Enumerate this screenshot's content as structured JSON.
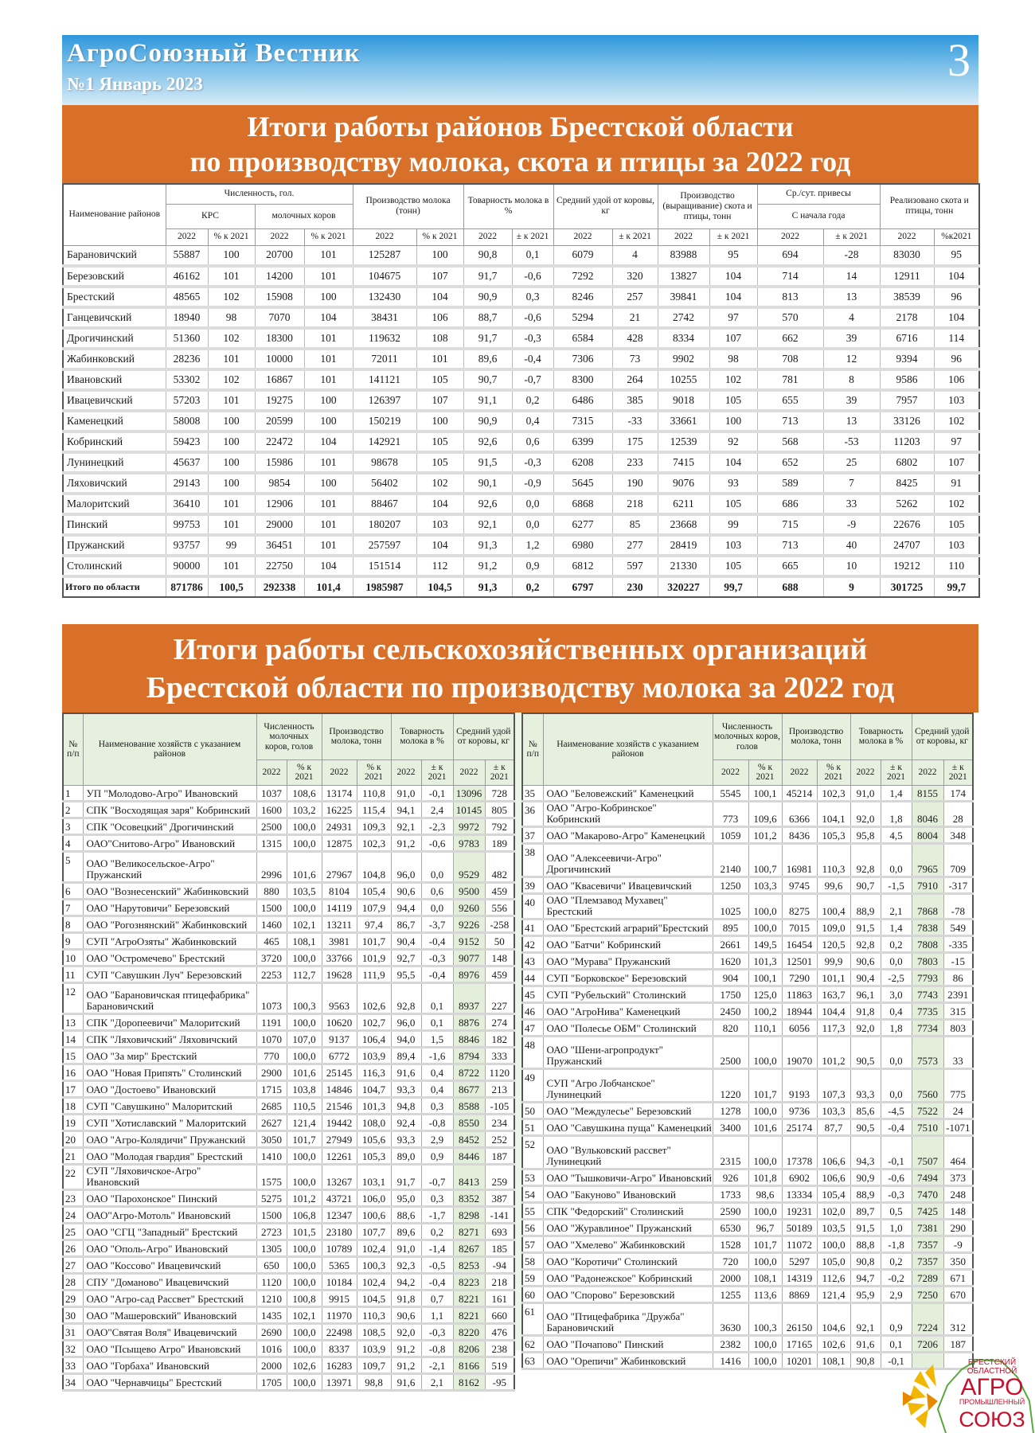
{
  "masthead": {
    "title": "АгроСоюзный  Вестник",
    "issue": "№1 Январь 2023",
    "page": "3"
  },
  "colors": {
    "masthead_blue": "#2e97dc",
    "title_band_orange": "#d8702a",
    "highlight_green": "#e3efdb"
  },
  "section1": {
    "title_lines": [
      "Итоги работы районов Брестской области",
      "по производству молока, скота и птицы за 2022 год"
    ],
    "headers": {
      "name": "Наименование районов",
      "headcount": "Численность, гол.",
      "krs": "КРС",
      "cows": "молочных коров",
      "milk": "Производство молока (тонн)",
      "marketability": "Товарность молока в %",
      "yield": "Средний удой от коровы, кг",
      "livestock": "Производство (выращивание) скота и птицы, тонн",
      "gain": "Ср./сут. привесы",
      "gain_sub": "С начала года",
      "sold": "Реализовано скота и птицы, тонн",
      "sub": [
        "2022",
        "% к 2021",
        "2022",
        "% к 2021",
        "2022",
        "% к 2021",
        "2022",
        "± к 2021",
        "2022",
        "± к 2021",
        "2022",
        "± к 2021",
        "2022",
        "± к 2021",
        "2022",
        "%к2021"
      ]
    },
    "rows": [
      [
        "Барановичский",
        "55887",
        "100",
        "20700",
        "101",
        "125287",
        "100",
        "90,8",
        "0,1",
        "6079",
        "4",
        "83988",
        "95",
        "694",
        "-28",
        "83030",
        "95"
      ],
      [
        "Березовский",
        "46162",
        "101",
        "14200",
        "101",
        "104675",
        "107",
        "91,7",
        "-0,6",
        "7292",
        "320",
        "13827",
        "104",
        "714",
        "14",
        "12911",
        "104"
      ],
      [
        "Брестский",
        "48565",
        "102",
        "15908",
        "100",
        "132430",
        "104",
        "90,9",
        "0,3",
        "8246",
        "257",
        "39841",
        "104",
        "813",
        "13",
        "38539",
        "96"
      ],
      [
        "Ганцевичский",
        "18940",
        "98",
        "7070",
        "104",
        "38431",
        "106",
        "88,7",
        "-0,6",
        "5294",
        "21",
        "2742",
        "97",
        "570",
        "4",
        "2178",
        "104"
      ],
      [
        "Дрогичинский",
        "51360",
        "102",
        "18300",
        "101",
        "119632",
        "108",
        "91,7",
        "-0,3",
        "6584",
        "428",
        "8334",
        "107",
        "662",
        "39",
        "6716",
        "114"
      ],
      [
        "Жабинковский",
        "28236",
        "101",
        "10000",
        "101",
        "72011",
        "101",
        "89,6",
        "-0,4",
        "7306",
        "73",
        "9902",
        "98",
        "708",
        "12",
        "9394",
        "96"
      ],
      [
        "Ивановский",
        "53302",
        "102",
        "16867",
        "101",
        "141121",
        "105",
        "90,7",
        "-0,7",
        "8300",
        "264",
        "10255",
        "102",
        "781",
        "8",
        "9586",
        "106"
      ],
      [
        "Ивацевичский",
        "57203",
        "101",
        "19275",
        "100",
        "126397",
        "107",
        "91,1",
        "0,2",
        "6486",
        "385",
        "9018",
        "105",
        "655",
        "39",
        "7957",
        "103"
      ],
      [
        "Каменецкий",
        "58008",
        "100",
        "20599",
        "100",
        "150219",
        "100",
        "90,9",
        "0,4",
        "7315",
        "-33",
        "33661",
        "100",
        "713",
        "13",
        "33126",
        "102"
      ],
      [
        "Кобринский",
        "59423",
        "100",
        "22472",
        "104",
        "142921",
        "105",
        "92,6",
        "0,6",
        "6399",
        "175",
        "12539",
        "92",
        "568",
        "-53",
        "11203",
        "97"
      ],
      [
        "Лунинецкий",
        "45637",
        "100",
        "15986",
        "101",
        "98678",
        "105",
        "91,5",
        "-0,3",
        "6208",
        "233",
        "7415",
        "104",
        "652",
        "25",
        "6802",
        "107"
      ],
      [
        "Ляховичский",
        "29143",
        "100",
        "9854",
        "100",
        "56402",
        "102",
        "90,1",
        "-0,9",
        "5645",
        "190",
        "9076",
        "93",
        "589",
        "7",
        "8425",
        "91"
      ],
      [
        "Малоритский",
        "36410",
        "101",
        "12906",
        "101",
        "88467",
        "104",
        "92,6",
        "0,0",
        "6868",
        "218",
        "6211",
        "105",
        "686",
        "33",
        "5262",
        "102"
      ],
      [
        "Пинский",
        "99753",
        "101",
        "29000",
        "101",
        "180207",
        "103",
        "92,1",
        "0,0",
        "6277",
        "85",
        "23668",
        "99",
        "715",
        "-9",
        "22676",
        "105"
      ],
      [
        "Пружанский",
        "93757",
        "99",
        "36451",
        "101",
        "257597",
        "104",
        "91,3",
        "1,2",
        "6980",
        "277",
        "28419",
        "103",
        "713",
        "40",
        "24707",
        "103"
      ],
      [
        "Столинский",
        "90000",
        "101",
        "22750",
        "104",
        "151514",
        "112",
        "91,2",
        "0,9",
        "6812",
        "597",
        "21330",
        "105",
        "665",
        "10",
        "19212",
        "110"
      ]
    ],
    "total": [
      "Итого по области",
      "871786",
      "100,5",
      "292338",
      "101,4",
      "1985987",
      "104,5",
      "91,3",
      "0,2",
      "6797",
      "230",
      "320227",
      "99,7",
      "688",
      "9",
      "301725",
      "99,7"
    ]
  },
  "section2": {
    "title_lines": [
      "Итоги работы сельскохозяйственных организаций",
      "Брестской области  по производству молока за 2022 год"
    ],
    "headers": {
      "num": "№ п/п",
      "name": "Наименование хозяйств с указанием районов",
      "cows": "Численность молочных коров, голов",
      "milk": "Производство молока, тонн",
      "marketability": "Товарность молока в %",
      "yield": "Средний удой от коровы, кг",
      "sub": [
        "2022",
        "% к 2021",
        "2022",
        "% к 2021",
        "2022",
        "± к 2021",
        "2022",
        "± к 2021"
      ]
    },
    "left_rows": [
      [
        "1",
        "УП \"Молодово-Агро\" Ивановский",
        "1037",
        "108,6",
        "13174",
        "110,8",
        "91,0",
        "-0,1",
        "13096",
        "728"
      ],
      [
        "2",
        "СПК \"Восходящая заря\" Кобринский",
        "1600",
        "103,2",
        "16225",
        "115,4",
        "94,1",
        "2,4",
        "10145",
        "805"
      ],
      [
        "3",
        "СПК \"Осовецкий\" Дрогичинский",
        "2500",
        "100,0",
        "24931",
        "109,3",
        "92,1",
        "-2,3",
        "9972",
        "792"
      ],
      [
        "4",
        "ОАО\"Снитово-Агро\" Ивановский",
        "1315",
        "100,0",
        "12875",
        "102,3",
        "91,2",
        "-0,6",
        "9783",
        "189"
      ],
      [
        "5",
        "ОАО \"Великосельское-Агро\"\n Пружанский",
        "2996",
        "101,6",
        "27967",
        "104,8",
        "96,0",
        "0,0",
        "9529",
        "482"
      ],
      [
        "6",
        "ОАО \"Вознесенский\"  Жабинковский",
        "880",
        "103,5",
        "8104",
        "105,4",
        "90,6",
        "0,6",
        "9500",
        "459"
      ],
      [
        "7",
        "ОАО \"Нарутовичи\" Березовский",
        "1500",
        "100,0",
        "14119",
        "107,9",
        "94,4",
        "0,0",
        "9260",
        "556"
      ],
      [
        "8",
        "ОАО \"Рогознянский\"  Жабинковский",
        "1460",
        "102,1",
        "13211",
        "97,4",
        "86,7",
        "-3,7",
        "9226",
        "-258"
      ],
      [
        "9",
        "СУП \"АгроОзяты\" Жабинковский",
        "465",
        "108,1",
        "3981",
        "101,7",
        "90,4",
        "-0,4",
        "9152",
        "50"
      ],
      [
        "10",
        "ОАО \"Остромечево\" Брестский",
        "3720",
        "100,0",
        "33766",
        "101,9",
        "92,7",
        "-0,3",
        "9077",
        "148"
      ],
      [
        "11",
        "СУП \"Савушкин Луч\" Березовский",
        "2253",
        "112,7",
        "19628",
        "111,9",
        "95,5",
        "-0,4",
        "8976",
        "459"
      ],
      [
        "12",
        "ОАО \"Барановичская птицефабрика\"\nБарановичский",
        "1073",
        "100,3",
        "9563",
        "102,6",
        "92,8",
        "0,1",
        "8937",
        "227"
      ],
      [
        "13",
        "СПК \"Доропеевичи\" Малоритский",
        "1191",
        "100,0",
        "10620",
        "102,7",
        "96,0",
        "0,1",
        "8876",
        "274"
      ],
      [
        "14",
        "СПК \"Ляховичский\"  Ляховичский",
        "1070",
        "107,0",
        "9137",
        "106,4",
        "94,0",
        "1,5",
        "8846",
        "182"
      ],
      [
        "15",
        "ОАО \"За мир\" Брестский",
        "770",
        "100,0",
        "6772",
        "103,9",
        "89,4",
        "-1,6",
        "8794",
        "333"
      ],
      [
        "16",
        "ОАО \"Новая Припять\" Столинский",
        "2900",
        "101,6",
        "25145",
        "116,3",
        "91,6",
        "0,4",
        "8722",
        "1120"
      ],
      [
        "17",
        "ОАО \"Достоево\" Ивановский",
        "1715",
        "103,8",
        "14846",
        "104,7",
        "93,3",
        "0,4",
        "8677",
        "213"
      ],
      [
        "18",
        "СУП \"Савушкино\" Малоритский",
        "2685",
        "110,5",
        "21546",
        "101,3",
        "94,8",
        "0,3",
        "8588",
        "-105"
      ],
      [
        "19",
        "СУП \"Хотиславский \" Малоритский",
        "2627",
        "121,4",
        "19442",
        "108,0",
        "92,4",
        "-0,8",
        "8550",
        "234"
      ],
      [
        "20",
        "ОАО \"Агро-Колядичи\" Пружанский",
        "3050",
        "101,7",
        "27949",
        "105,6",
        "93,3",
        "2,9",
        "8452",
        "252"
      ],
      [
        "21",
        "ОАО \"Молодая гвардия\" Брестский",
        "1410",
        "100,0",
        "12261",
        "105,3",
        "89,0",
        "0,9",
        "8446",
        "187"
      ],
      [
        "22",
        "СУП \"Ляховичское-Агро\" Ивановский",
        "1575",
        "100,0",
        "13267",
        "103,1",
        "91,7",
        "-0,7",
        "8413",
        "259"
      ],
      [
        "23",
        "ОАО \"Парохонское\" Пинский",
        "5275",
        "101,2",
        "43721",
        "106,0",
        "95,0",
        "0,3",
        "8352",
        "387"
      ],
      [
        "24",
        "ОАО\"Агро-Мотоль\" Ивановский",
        "1500",
        "106,8",
        "12347",
        "100,6",
        "88,6",
        "-1,7",
        "8298",
        "-141"
      ],
      [
        "25",
        "ОАО \"СГЦ \"Западный\" Брестский",
        "2723",
        "101,5",
        "23180",
        "107,7",
        "89,6",
        "0,2",
        "8271",
        "693"
      ],
      [
        "26",
        "ОАО \"Ополь-Агро\" Ивановский",
        "1305",
        "100,0",
        "10789",
        "102,4",
        "91,0",
        "-1,4",
        "8267",
        "185"
      ],
      [
        "27",
        "ОАО \"Коссово\" Ивацевичский",
        "650",
        "100,0",
        "5365",
        "100,3",
        "92,3",
        "-0,5",
        "8253",
        "-94"
      ],
      [
        "28",
        "СПУ \"Доманово\" Ивацевичский",
        "1120",
        "100,0",
        "10184",
        "102,4",
        "94,2",
        "-0,4",
        "8223",
        "218"
      ],
      [
        "29",
        "ОАО \"Агро-сад Рассвет\" Брестский",
        "1210",
        "100,8",
        "9915",
        "104,5",
        "91,8",
        "0,7",
        "8221",
        "161"
      ],
      [
        "30",
        "ОАО \"Машеровский\" Ивановский",
        "1435",
        "102,1",
        "11970",
        "110,3",
        "90,6",
        "1,1",
        "8221",
        "660"
      ],
      [
        "31",
        "ОАО\"Святая Воля\" Ивацевичский",
        "2690",
        "100,0",
        "22498",
        "108,5",
        "92,0",
        "-0,3",
        "8220",
        "476"
      ],
      [
        "32",
        "ОАО \"Псыщево Агро\" Ивановский",
        "1016",
        "100,0",
        "8337",
        "103,9",
        "91,2",
        "-0,8",
        "8206",
        "238"
      ],
      [
        "33",
        "ОАО \"Горбаха\" Ивановский",
        "2000",
        "102,6",
        "16283",
        "109,7",
        "91,2",
        "-2,1",
        "8166",
        "519"
      ],
      [
        "34",
        "ОАО \"Чернавчицы\" Брестский",
        "1705",
        "100,0",
        "13971",
        "98,8",
        "91,6",
        "2,1",
        "8162",
        "-95"
      ]
    ],
    "right_rows": [
      [
        "35",
        "ОАО \"Беловежский\" Каменецкий",
        "5545",
        "100,1",
        "45214",
        "102,3",
        "91,0",
        "1,4",
        "8155",
        "174"
      ],
      [
        "36",
        "ОАО \"Агро-Кобринское\" Кобринский",
        "773",
        "109,6",
        "6366",
        "104,1",
        "92,0",
        "1,8",
        "8046",
        "28"
      ],
      [
        "37",
        "ОАО \"Макарово-Агро\" Каменецкий",
        "1059",
        "101,2",
        "8436",
        "105,3",
        "95,8",
        "4,5",
        "8004",
        "348"
      ],
      [
        "38",
        "ОАО \"Алексеевичи-Агро\"\nДрогичинский",
        "2140",
        "100,7",
        "16981",
        "110,3",
        "92,8",
        "0,0",
        "7965",
        "709"
      ],
      [
        "39",
        "ОАО \"Квасевичи\" Ивацевичский",
        "1250",
        "103,3",
        "9745",
        "99,6",
        "90,7",
        "-1,5",
        "7910",
        "-317"
      ],
      [
        "40",
        "ОАО \"Племзавод Мухавец\" Брестский",
        "1025",
        "100,0",
        "8275",
        "100,4",
        "88,9",
        "2,1",
        "7868",
        "-78"
      ],
      [
        "41",
        "ОАО \"Брестский аграрий\"Брестский",
        "895",
        "100,0",
        "7015",
        "109,0",
        "91,5",
        "1,4",
        "7838",
        "549"
      ],
      [
        "42",
        "ОАО \"Батчи\" Кобринский",
        "2661",
        "149,5",
        "16454",
        "120,5",
        "92,8",
        "0,2",
        "7808",
        "-335"
      ],
      [
        "43",
        "ОАО \"Мурава\" Пружанский",
        "1620",
        "101,3",
        "12501",
        "99,9",
        "90,6",
        "0,0",
        "7803",
        "-15"
      ],
      [
        "44",
        "СУП \"Борковское\"  Березовский",
        "904",
        "100,1",
        "7290",
        "101,1",
        "90,4",
        "-2,5",
        "7793",
        "86"
      ],
      [
        "45",
        "СУП \"Рубельский\" Столинский",
        "1750",
        "125,0",
        "11863",
        "163,7",
        "96,1",
        "3,0",
        "7743",
        "2391"
      ],
      [
        "46",
        "ОАО \"АгроНива\" Каменецкий",
        "2450",
        "100,2",
        "18944",
        "104,4",
        "91,8",
        "0,4",
        "7735",
        "315"
      ],
      [
        "47",
        "ОАО \"Полесье ОБМ\" Столинский",
        "820",
        "110,1",
        "6056",
        "117,3",
        "92,0",
        "1,8",
        "7734",
        "803"
      ],
      [
        "48",
        "ОАО \"Шени-агропродукт\"\nПружанский",
        "2500",
        "100,0",
        "19070",
        "101,2",
        "90,5",
        "0,0",
        "7573",
        "33"
      ],
      [
        "49",
        "СУП \"Агро Лобчанское\"\nЛунинецкий",
        "1220",
        "101,7",
        "9193",
        "107,3",
        "93,3",
        "0,0",
        "7560",
        "775"
      ],
      [
        "50",
        "ОАО \"Междулесье\" Березовский",
        "1278",
        "100,0",
        "9736",
        "103,3",
        "85,6",
        "-4,5",
        "7522",
        "24"
      ],
      [
        "51",
        "ОАО \"Савушкина пуща\" Каменецкий",
        "3400",
        "101,6",
        "25174",
        "87,7",
        "90,5",
        "-0,4",
        "7510",
        "-1071"
      ],
      [
        "52",
        "ОАО \"Вульковский  рассвет\"\nЛунинецкий",
        "2315",
        "100,0",
        "17378",
        "106,6",
        "94,3",
        "-0,1",
        "7507",
        "464"
      ],
      [
        "53",
        "ОАО \"Тышковичи-Агро\" Ивановский",
        "926",
        "101,8",
        "6902",
        "106,6",
        "90,9",
        "-0,6",
        "7494",
        "373"
      ],
      [
        "54",
        "ОАО \"Бакуново\" Ивановский",
        "1733",
        "98,6",
        "13334",
        "105,4",
        "88,9",
        "-0,3",
        "7470",
        "248"
      ],
      [
        "55",
        "СПК \"Федорский\" Столинский",
        "2590",
        "100,0",
        "19231",
        "102,0",
        "89,7",
        "0,5",
        "7425",
        "148"
      ],
      [
        "56",
        "ОАО \"Журавлиное\" Пружанский",
        "6530",
        "96,7",
        "50189",
        "103,5",
        "91,5",
        "1,0",
        "7381",
        "290"
      ],
      [
        "57",
        "ОАО \"Хмелево\"  Жабинковский",
        "1528",
        "101,7",
        "11072",
        "100,0",
        "88,8",
        "-1,8",
        "7357",
        "-9"
      ],
      [
        "58",
        "ОАО \"Коротичи\" Столинский",
        "720",
        "100,0",
        "5297",
        "105,0",
        "90,8",
        "0,2",
        "7357",
        "350"
      ],
      [
        "59",
        "ОАО \"Радонежское\" Кобринский",
        "2000",
        "108,1",
        "14319",
        "112,6",
        "94,7",
        "-0,2",
        "7289",
        "671"
      ],
      [
        "60",
        "ОАО \"Спорово\" Березовский",
        "1255",
        "113,6",
        "8869",
        "121,4",
        "95,9",
        "2,9",
        "7250",
        "670"
      ],
      [
        "61",
        "ОАО \"Птицефабрика \"Дружба\"\nБарановичский",
        "3630",
        "100,3",
        "26150",
        "104,6",
        "92,1",
        "0,9",
        "7224",
        "312"
      ],
      [
        "62",
        "ОАО \"Почапово\" Пинский",
        "2382",
        "100,0",
        "17165",
        "102,6",
        "91,6",
        "0,1",
        "7206",
        "187"
      ],
      [
        "63",
        "ОАО \"Орепичи\"  Жабинковский",
        "1416",
        "100,0",
        "10201",
        "108,1",
        "90,8",
        "-0,1",
        "",
        ""
      ]
    ]
  },
  "logo": {
    "lines": [
      "БРЕСТСКИЙ",
      "ОБЛАСТНОЙ",
      "АГРО",
      "ПРОМЫШЛЕННЫЙ",
      "СОЮЗ"
    ]
  }
}
